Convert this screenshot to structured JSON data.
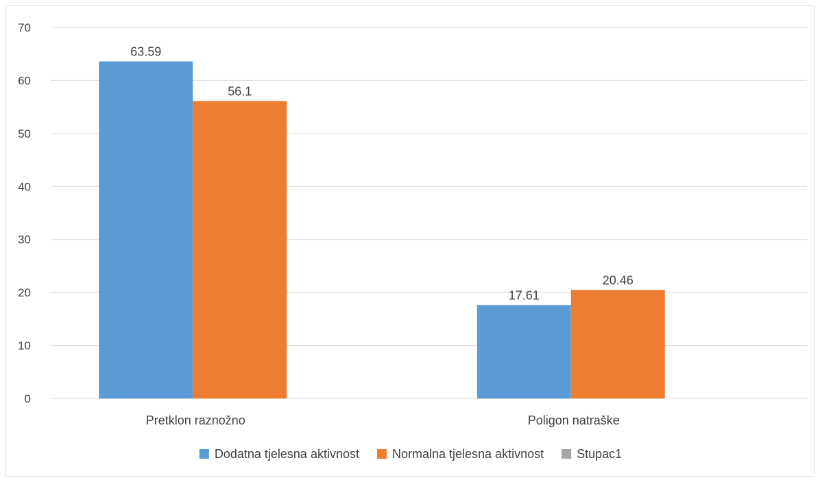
{
  "chart_data": {
    "type": "bar",
    "categories": [
      "Pretklon raznožno",
      "Poligon natraške"
    ],
    "series": [
      {
        "name": "Dodatna tjelesna aktivnost",
        "values": [
          63.59,
          17.61
        ],
        "labels": [
          "63.59",
          "17.61"
        ],
        "color": "#5b9bd5"
      },
      {
        "name": "Normalna tjelesna aktivnost",
        "values": [
          56.1,
          20.46
        ],
        "labels": [
          "56.1",
          "20.46"
        ],
        "color": "#ed7d31"
      },
      {
        "name": "Stupac1",
        "values": [
          null,
          null
        ],
        "labels": [
          "",
          ""
        ],
        "color": "#a5a5a5"
      }
    ],
    "yticks": [
      "0",
      "10",
      "20",
      "30",
      "40",
      "50",
      "60",
      "70"
    ],
    "ylim": [
      0,
      70
    ],
    "grid": true,
    "legend": "bottom",
    "colors": {
      "grid": "#d9d9d9",
      "text": "#404040",
      "frame": "#d9d9d9"
    }
  }
}
